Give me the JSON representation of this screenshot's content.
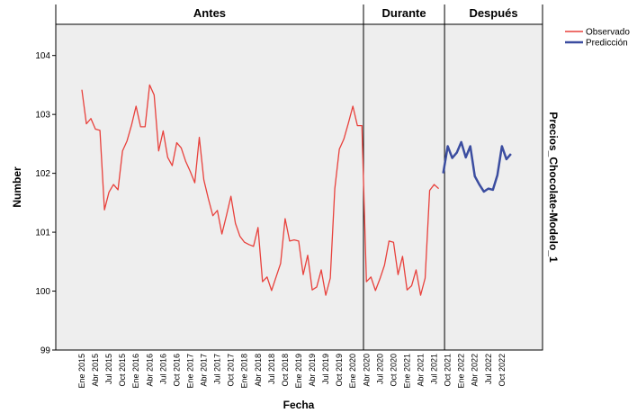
{
  "chart_data": {
    "type": "line",
    "title": "Precios_Chocolate-Modelo_1",
    "periods": [
      "Antes",
      "Durante",
      "Después"
    ],
    "x_label": "Fecha",
    "y_label": "Number",
    "categories": [
      "Ene 2015",
      null,
      null,
      "Abr 2015",
      null,
      null,
      "Jul 2015",
      null,
      null,
      "Oct 2015",
      null,
      null,
      "Ene 2016",
      null,
      null,
      "Abr 2016",
      null,
      null,
      "Jul 2016",
      null,
      null,
      "Oct 2016",
      null,
      null,
      "Ene 2017",
      null,
      null,
      "Abr 2017",
      null,
      null,
      "Jul 2017",
      null,
      null,
      "Oct 2017",
      null,
      null,
      "Ene 2018",
      null,
      null,
      "Abr 2018",
      null,
      null,
      "Jul 2018",
      null,
      null,
      "Oct 2018",
      null,
      null,
      "Ene 2019",
      null,
      null,
      "Abr 2019",
      null,
      null,
      "Jul 2019",
      null,
      null,
      "Oct 2019",
      null,
      null,
      "Ene 2020",
      null,
      null,
      "Abr 2020",
      null,
      null,
      "Jul 2020",
      null,
      null,
      "Oct 2020",
      null,
      null,
      "Ene 2021",
      null,
      null,
      "Abr 2021",
      null,
      null,
      "Jul 2021",
      null,
      null,
      "Oct 2021",
      null,
      null,
      "Ene 2022",
      null,
      null,
      "Abr 2022",
      null,
      null,
      "Jul 2022",
      null,
      null,
      "Oct 2022",
      null,
      null
    ],
    "series": [
      {
        "name": "Observado",
        "color": "#e8413c",
        "values": [
          103.42,
          102.84,
          102.93,
          102.75,
          102.73,
          101.38,
          101.68,
          101.81,
          101.72,
          102.38,
          102.55,
          102.82,
          103.14,
          102.79,
          102.79,
          103.5,
          103.33,
          102.38,
          102.72,
          102.27,
          102.13,
          102.52,
          102.43,
          102.2,
          102.03,
          101.84,
          102.61,
          101.89,
          101.57,
          101.28,
          101.37,
          100.97,
          101.28,
          101.61,
          101.15,
          100.93,
          100.83,
          100.79,
          100.76,
          101.08,
          100.16,
          100.24,
          100.01,
          100.24,
          100.47,
          101.23,
          100.85,
          100.87,
          100.85,
          100.28,
          100.61,
          100.02,
          100.07,
          100.36,
          99.93,
          100.22,
          101.74,
          102.41,
          102.58,
          102.85,
          103.14,
          102.81,
          102.81,
          100.16,
          100.24,
          100.01,
          100.21,
          100.44,
          100.85,
          100.83,
          100.28,
          100.59,
          100.02,
          100.09,
          100.36,
          99.93,
          100.22,
          101.71,
          101.81,
          101.74,
          null,
          null,
          null,
          null,
          null,
          null,
          null,
          null,
          null,
          null,
          null,
          null,
          null,
          null,
          null,
          null
        ]
      },
      {
        "name": "Predicción",
        "color": "#3b4da0",
        "values": [
          null,
          null,
          null,
          null,
          null,
          null,
          null,
          null,
          null,
          null,
          null,
          null,
          null,
          null,
          null,
          null,
          null,
          null,
          null,
          null,
          null,
          null,
          null,
          null,
          null,
          null,
          null,
          null,
          null,
          null,
          null,
          null,
          null,
          null,
          null,
          null,
          null,
          null,
          null,
          null,
          null,
          null,
          null,
          null,
          null,
          null,
          null,
          null,
          null,
          null,
          null,
          null,
          null,
          null,
          null,
          null,
          null,
          null,
          null,
          null,
          null,
          null,
          null,
          null,
          null,
          null,
          null,
          null,
          null,
          null,
          null,
          null,
          null,
          null,
          null,
          null,
          null,
          null,
          null,
          null,
          102.0,
          102.46,
          102.26,
          102.35,
          102.53,
          102.27,
          102.46,
          101.95,
          101.81,
          101.69,
          101.74,
          101.72,
          101.97,
          102.46,
          102.24,
          102.33
        ]
      }
    ],
    "ylim": [
      99,
      104.53
    ],
    "yticks": [
      99,
      100,
      101,
      102,
      103,
      104
    ]
  }
}
